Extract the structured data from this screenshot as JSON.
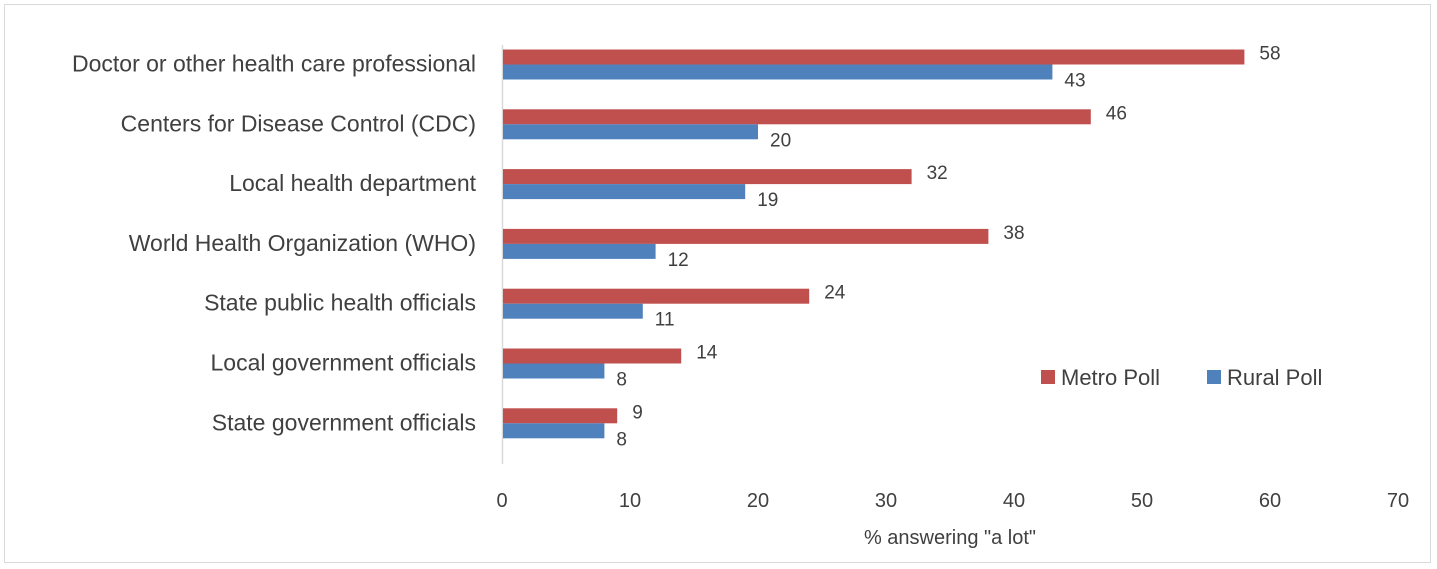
{
  "chart_data": {
    "type": "bar",
    "orientation": "horizontal",
    "title": "",
    "xlabel": "% answering \"a lot\"",
    "ylabel": "",
    "xlim": [
      0,
      70
    ],
    "xticks": [
      0,
      10,
      20,
      30,
      40,
      50,
      60,
      70
    ],
    "grid": false,
    "legend_position": "bottom-right",
    "categories": [
      "Doctor or other health care professional",
      "Centers for Disease Control (CDC)",
      "Local health department",
      "World Health Organization (WHO)",
      "State public health officials",
      "Local government officials",
      "State government officials"
    ],
    "series": [
      {
        "name": "Metro Poll",
        "color": "#c0504d",
        "values": [
          58,
          46,
          32,
          38,
          24,
          14,
          9
        ]
      },
      {
        "name": "Rural Poll",
        "color": "#4f81bd",
        "values": [
          43,
          20,
          19,
          12,
          11,
          8,
          8
        ]
      }
    ]
  }
}
